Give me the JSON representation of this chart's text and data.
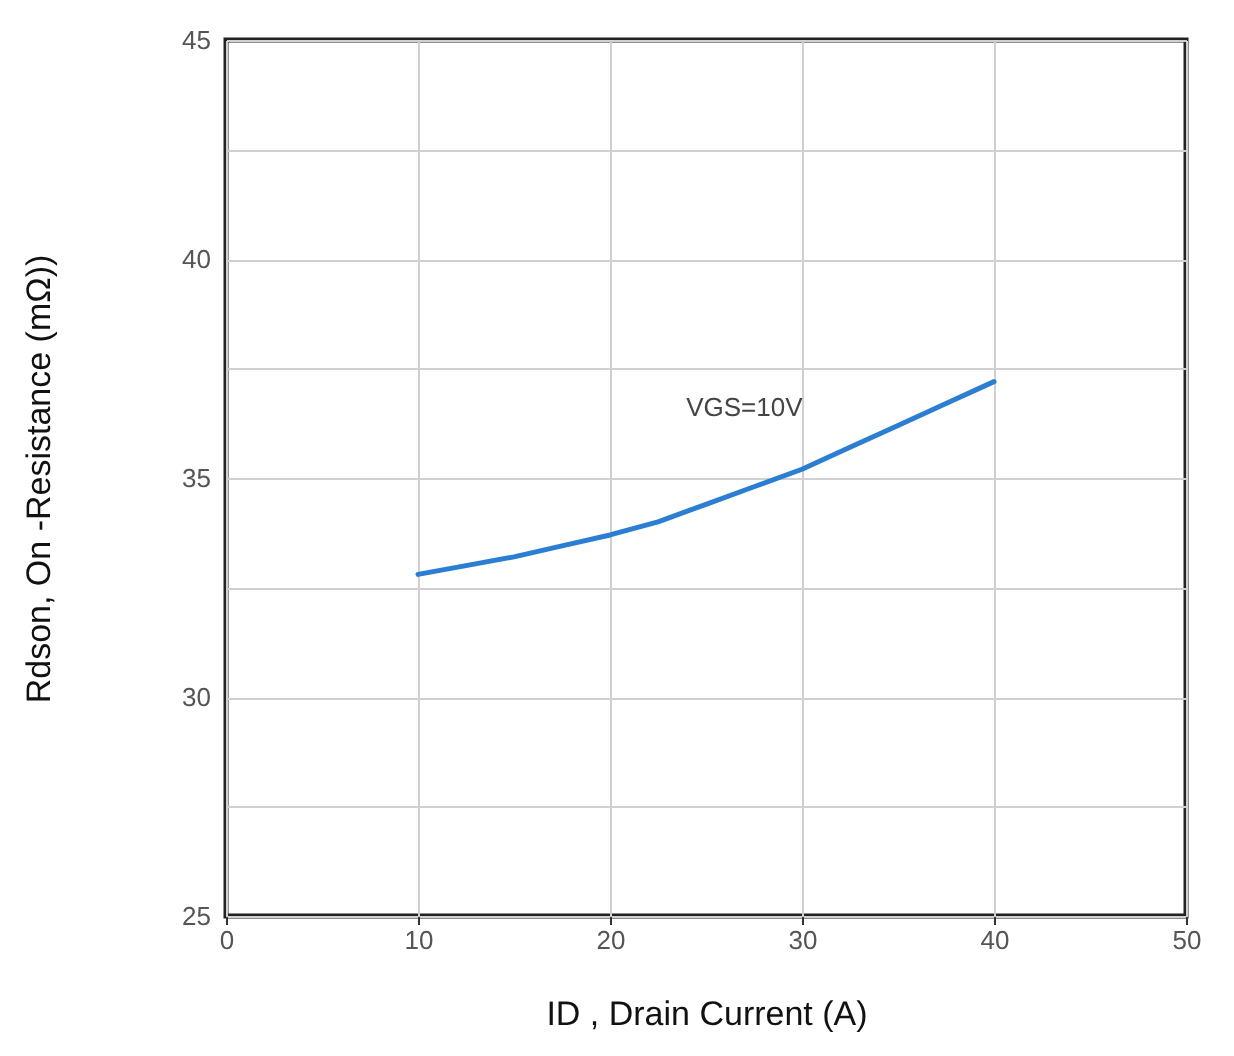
{
  "chart_data": {
    "type": "line",
    "xlabel": "ID , Drain Current (A)",
    "ylabel": "Rdson, On -Resistance (mΩ))",
    "annotations": [
      "VGS=10V"
    ],
    "x": [
      10,
      12.5,
      15,
      17.5,
      20,
      22.5,
      25,
      27.5,
      30,
      32.5,
      35,
      37.5,
      40
    ],
    "series": [
      {
        "color": "#2a7fd4",
        "values": [
          32.8,
          33,
          33.2,
          33.45,
          33.7,
          34,
          34.4,
          34.8,
          35.2,
          35.7,
          36.2,
          36.7,
          37.2
        ]
      }
    ],
    "xlim": [
      0,
      50
    ],
    "xticks": [
      0,
      10,
      20,
      30,
      40,
      50
    ],
    "ylim": [
      25,
      45
    ],
    "yticks": [
      25,
      {
        "value": 27.5,
        "label": null
      },
      30,
      {
        "value": 32.5,
        "label": null
      },
      35,
      {
        "value": 37.5,
        "label": null
      },
      40,
      {
        "value": 42.5,
        "label": null
      },
      45
    ],
    "grid": true,
    "marker": "none",
    "line_style": "solid"
  }
}
